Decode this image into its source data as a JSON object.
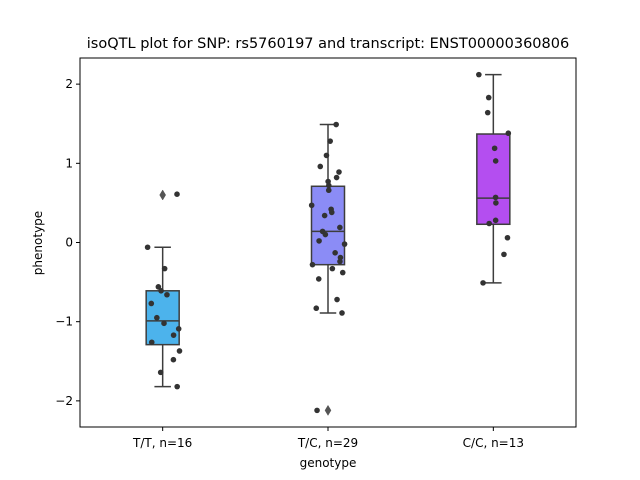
{
  "chart_data": {
    "type": "box",
    "title": "isoQTL plot for SNP: rs5760197 and transcript: ENST00000360806",
    "xlabel": "genotype",
    "ylabel": "phenotype",
    "ylim": [
      -2.33,
      2.33
    ],
    "yticks": [
      -2,
      -1,
      0,
      1,
      2
    ],
    "yticklabels": [
      "−2",
      "−1",
      "0",
      "1",
      "2"
    ],
    "grid": false,
    "categories": [
      "T/T, n=16",
      "T/C, n=29",
      "C/C, n=13"
    ],
    "groups": [
      {
        "label": "T/T, n=16",
        "color": "#4cb3ec",
        "box": {
          "whisker_low": -1.82,
          "q1": -1.29,
          "median": -0.99,
          "q3": -0.61,
          "whisker_high": -0.06
        },
        "outliers": [
          0.6
        ],
        "points": [
          0.61,
          -0.06,
          -0.33,
          -0.56,
          -0.61,
          -0.66,
          -0.77,
          -0.95,
          -1.02,
          -1.09,
          -1.17,
          -1.26,
          -1.37,
          -1.48,
          -1.64,
          -1.82
        ]
      },
      {
        "label": "T/C, n=29",
        "color": "#8b8cf6",
        "box": {
          "whisker_low": -0.89,
          "q1": -0.28,
          "median": 0.14,
          "q3": 0.71,
          "whisker_high": 1.49
        },
        "outliers": [
          -2.12
        ],
        "points": [
          1.49,
          1.28,
          1.1,
          0.96,
          0.89,
          0.82,
          0.77,
          0.72,
          0.66,
          0.47,
          0.42,
          0.38,
          0.34,
          0.19,
          0.14,
          0.1,
          0.02,
          -0.02,
          -0.13,
          -0.19,
          -0.24,
          -0.28,
          -0.33,
          -0.38,
          -0.46,
          -0.72,
          -0.83,
          -0.89,
          -2.12
        ]
      },
      {
        "label": "C/C, n=13",
        "color": "#b44ef0",
        "box": {
          "whisker_low": -0.51,
          "q1": 0.23,
          "median": 0.56,
          "q3": 1.37,
          "whisker_high": 2.12
        },
        "outliers": [],
        "points": [
          2.12,
          1.83,
          1.64,
          1.38,
          1.19,
          1.03,
          0.57,
          0.5,
          0.28,
          0.24,
          0.06,
          -0.15,
          -0.51
        ]
      }
    ]
  }
}
